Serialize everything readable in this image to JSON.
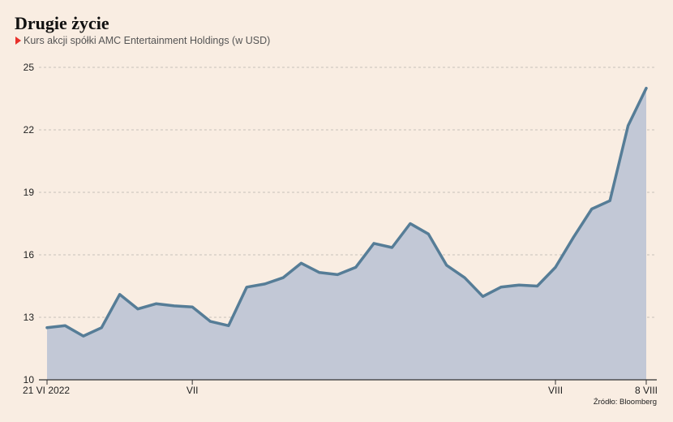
{
  "title": "Drugie życie",
  "subtitle": "Kurs akcji spółki AMC Entertainment Holdings (w USD)",
  "source": "Źródło: Bloomberg",
  "colors": {
    "background": "#f9ede2",
    "line": "#567d97",
    "area": "#c2c8d6",
    "grid": "#b7b2ad",
    "accent": "#e8302a"
  },
  "chart_data": {
    "type": "area",
    "title": "Drugie życie",
    "subtitle": "Kurs akcji spółki AMC Entertainment Holdings (w USD)",
    "xlabel": "",
    "ylabel": "",
    "ylim": [
      10,
      25
    ],
    "yticks": [
      10,
      13,
      16,
      19,
      22,
      25
    ],
    "grid": true,
    "legend": "none",
    "x_tick_labels": [
      {
        "index": 0,
        "label": "21 VI 2022"
      },
      {
        "index": 8,
        "label": "VII"
      },
      {
        "index": 28,
        "label": "VIII"
      },
      {
        "index": 33,
        "label": "8 VIII"
      }
    ],
    "series": [
      {
        "values": [
          12.5,
          12.6,
          12.1,
          12.5,
          14.1,
          13.4,
          13.65,
          13.55,
          13.5,
          12.8,
          12.6,
          14.45,
          14.6,
          14.9,
          15.6,
          15.15,
          15.05,
          15.4,
          16.55,
          16.35,
          17.5,
          17.0,
          15.5,
          14.9,
          14.0,
          14.45,
          14.55,
          14.5,
          15.4,
          16.85,
          18.2,
          18.6,
          22.2,
          24.0
        ]
      }
    ]
  }
}
